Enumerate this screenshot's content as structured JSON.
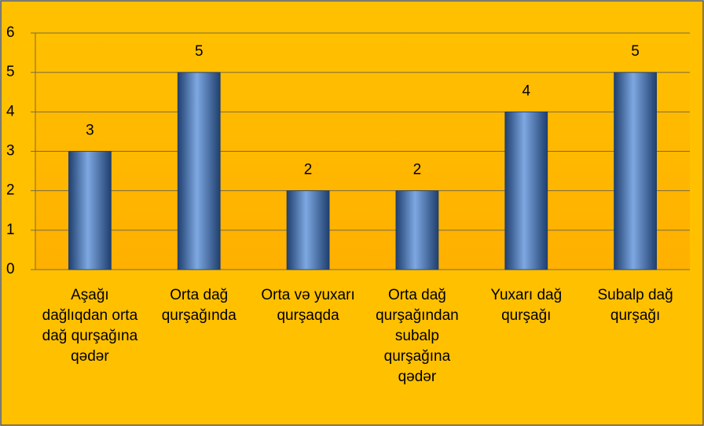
{
  "chart_data": {
    "type": "bar",
    "categories": [
      "Aşağı dağlıqdan orta dağ qurşağına qədər",
      "Orta dağ qurşağında",
      "Orta və yuxarı qurşaqda",
      "Orta dağ qurşağından subalp qurşağına qədər",
      "Yuxarı dağ qurşağı",
      "Subalp dağ qurşağı"
    ],
    "values": [
      3,
      5,
      2,
      2,
      4,
      5
    ],
    "color": "#4f81bd",
    "ylim": [
      0,
      6
    ],
    "yticks": [
      0,
      1,
      2,
      3,
      4,
      5,
      6
    ],
    "grid": true
  }
}
